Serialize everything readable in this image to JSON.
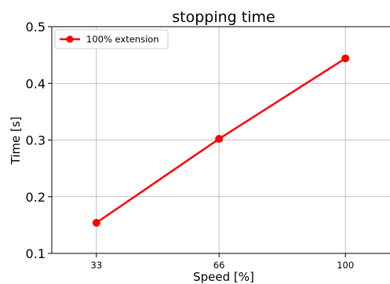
{
  "chart_data": {
    "type": "line",
    "title": "stopping time",
    "xlabel": "Speed [%]",
    "ylabel": "Time [s]",
    "x": [
      33,
      66,
      100
    ],
    "xticks": [
      "33",
      "66",
      "100"
    ],
    "yticks": [
      "0.1",
      "0.2",
      "0.3",
      "0.4",
      "0.5"
    ],
    "xlim": [
      21,
      112
    ],
    "ylim": [
      0.1,
      0.5
    ],
    "grid": true,
    "legend_position": "top-left",
    "series": [
      {
        "name": "100% extension",
        "values": [
          0.154,
          0.302,
          0.444
        ],
        "color": "#ff0000",
        "marker": "circle"
      }
    ]
  }
}
